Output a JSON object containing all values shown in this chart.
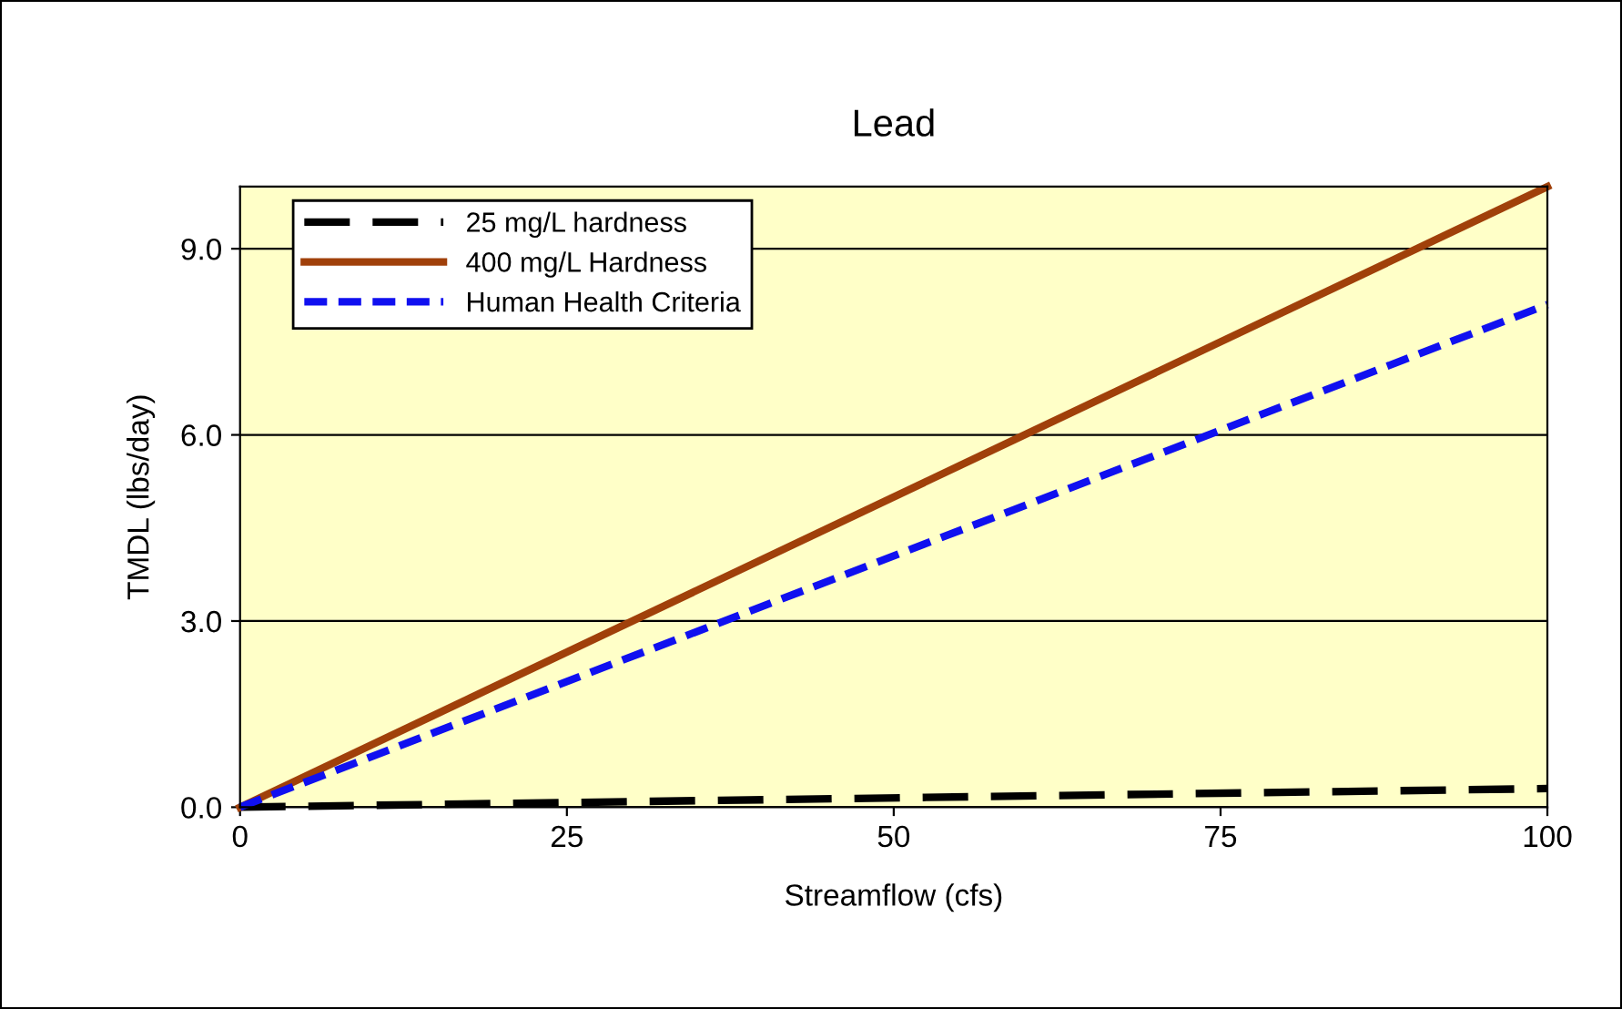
{
  "chart_data": {
    "type": "line",
    "title": "Lead",
    "xlabel": "Streamflow (cfs)",
    "ylabel": "TMDL (lbs/day)",
    "x": [
      0,
      100
    ],
    "xlim": [
      0,
      100
    ],
    "xticks": [
      0,
      25,
      50,
      75,
      100
    ],
    "ylim": [
      0,
      10
    ],
    "yticks": [
      {
        "value": 0,
        "label": "0.0"
      },
      {
        "value": 3,
        "label": "3.0"
      },
      {
        "value": 6,
        "label": "6.0"
      },
      {
        "value": 9,
        "label": "9.0"
      }
    ],
    "grid": "y",
    "legend": "top left",
    "marker": "none",
    "series": [
      {
        "name": "25 mg/L hardness",
        "color": "#000000",
        "line_style": "dashed",
        "values": [
          0,
          0.3
        ]
      },
      {
        "name": "400 mg/L Hardness",
        "color": "#a0400a",
        "line_style": "solid",
        "values": [
          0,
          10
        ]
      },
      {
        "name": "Human Health Criteria",
        "color": "#1010f0",
        "line_style": "dotted",
        "values": [
          0,
          8.1
        ]
      }
    ]
  }
}
